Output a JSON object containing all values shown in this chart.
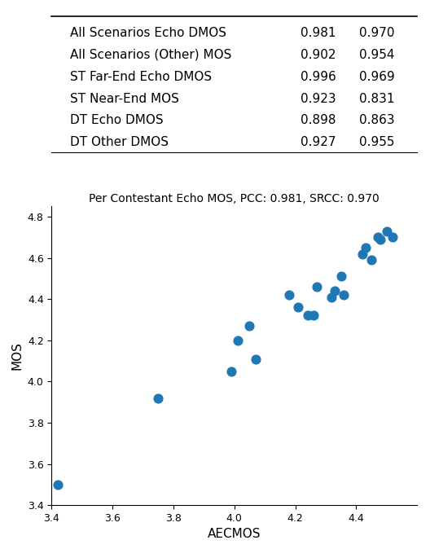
{
  "table": {
    "rows": [
      [
        "All Scenarios Echo DMOS",
        "0.981",
        "0.970"
      ],
      [
        "All Scenarios (Other) MOS",
        "0.902",
        "0.954"
      ],
      [
        "ST Far-End Echo DMOS",
        "0.996",
        "0.969"
      ],
      [
        "ST Near-End MOS",
        "0.923",
        "0.831"
      ],
      [
        "DT Echo DMOS",
        "0.898",
        "0.863"
      ],
      [
        "DT Other DMOS",
        "0.927",
        "0.955"
      ]
    ]
  },
  "scatter": {
    "title": "Per Contestant Echo MOS, PCC: 0.981, SRCC: 0.970",
    "xlabel": "AECMOS",
    "ylabel": "MOS",
    "xlim": [
      3.4,
      4.6
    ],
    "ylim": [
      3.4,
      4.85
    ],
    "xticks": [
      3.4,
      3.6,
      3.8,
      4.0,
      4.2,
      4.4
    ],
    "yticks": [
      3.4,
      3.6,
      3.8,
      4.0,
      4.2,
      4.4,
      4.6,
      4.8
    ],
    "dot_color": "#1f77b4",
    "dot_size": 60,
    "x": [
      3.42,
      3.75,
      3.99,
      4.01,
      4.05,
      4.07,
      4.18,
      4.21,
      4.24,
      4.26,
      4.27,
      4.32,
      4.33,
      4.35,
      4.36,
      4.42,
      4.43,
      4.45,
      4.47,
      4.48,
      4.5,
      4.52
    ],
    "y": [
      3.5,
      3.92,
      4.05,
      4.2,
      4.27,
      4.11,
      4.42,
      4.36,
      4.32,
      4.32,
      4.46,
      4.41,
      4.44,
      4.51,
      4.42,
      4.62,
      4.65,
      4.59,
      4.7,
      4.69,
      4.73,
      4.7
    ]
  }
}
